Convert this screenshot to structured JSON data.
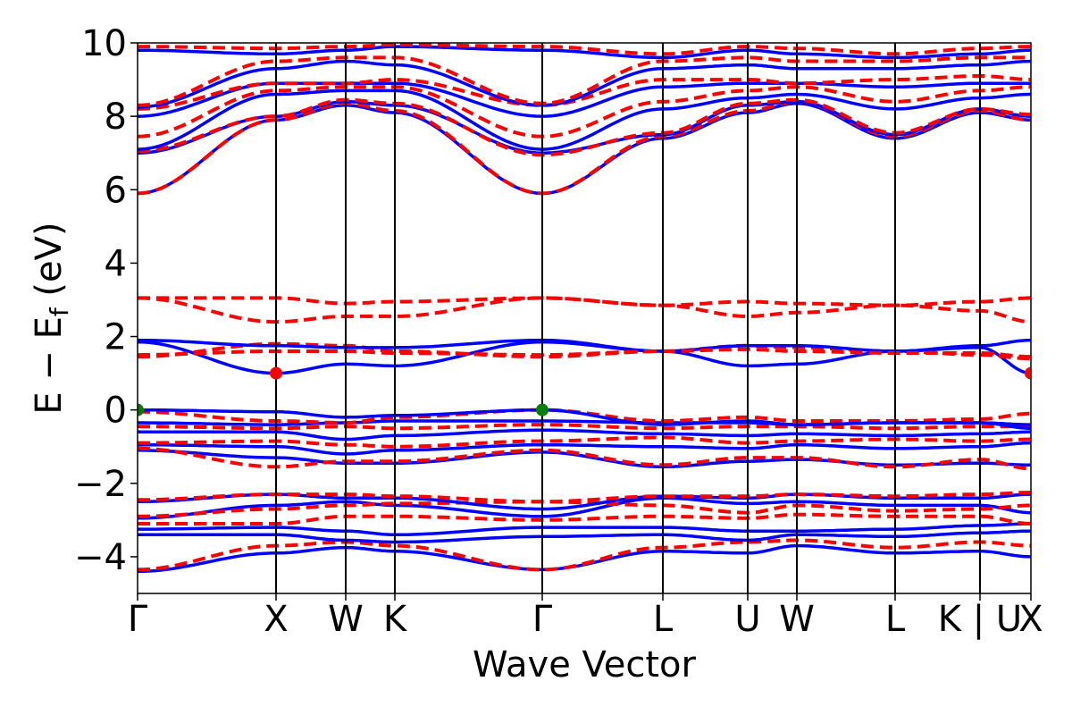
{
  "chart_data": {
    "type": "line",
    "xlabel": "Wave Vector",
    "ylabel": "E − E",
    "ylabel_sub": "f",
    "ylabel_unit": " (eV)",
    "ylim": [
      -5,
      10
    ],
    "xlim": [
      0,
      1
    ],
    "y_ticks": [
      -4,
      -2,
      0,
      2,
      4,
      6,
      8,
      10
    ],
    "y_tick_labels": [
      "−4",
      "−2",
      "0",
      "2",
      "4",
      "6",
      "8",
      "10"
    ],
    "kpoints": [
      {
        "label": "Γ",
        "x": 0.0
      },
      {
        "label": "X",
        "x": 0.155
      },
      {
        "label": "W",
        "x": 0.233
      },
      {
        "label": "K",
        "x": 0.288
      },
      {
        "label": "Γ",
        "x": 0.453
      },
      {
        "label": "L",
        "x": 0.588
      },
      {
        "label": "U",
        "x": 0.683
      },
      {
        "label": "W",
        "x": 0.738
      },
      {
        "label": "L",
        "x": 0.848
      },
      {
        "label": "K | U",
        "x": 0.943
      },
      {
        "label": "X",
        "x": 1.0
      }
    ],
    "colors": {
      "solid": "#0000ff",
      "dashed": "#ff0000",
      "vbm": "#008000",
      "cbm": "#ff0000",
      "kline": "#000000"
    },
    "series": [
      {
        "style": "solid",
        "y": [
          -4.4,
          -3.9,
          -3.75,
          -3.85,
          -4.35,
          -3.85,
          -3.9,
          -3.7,
          -3.9,
          -3.85,
          -4.0
        ]
      },
      {
        "style": "dashed",
        "y": [
          -4.35,
          -3.7,
          -3.6,
          -3.7,
          -4.35,
          -3.75,
          -3.6,
          -3.55,
          -3.75,
          -3.6,
          -3.7
        ]
      },
      {
        "style": "solid",
        "y": [
          -3.4,
          -3.4,
          -3.55,
          -3.6,
          -3.45,
          -3.4,
          -3.55,
          -3.4,
          -3.45,
          -3.35,
          -3.3
        ]
      },
      {
        "style": "solid",
        "y": [
          -3.25,
          -3.2,
          -3.3,
          -3.4,
          -3.2,
          -3.2,
          -3.3,
          -3.3,
          -3.25,
          -3.15,
          -3.1
        ]
      },
      {
        "style": "dashed",
        "y": [
          -3.1,
          -3.1,
          -2.9,
          -2.9,
          -3.0,
          -2.9,
          -2.95,
          -2.85,
          -2.9,
          -2.9,
          -3.1
        ]
      },
      {
        "style": "solid",
        "y": [
          -2.95,
          -2.6,
          -2.5,
          -2.6,
          -2.9,
          -2.4,
          -2.55,
          -2.5,
          -2.6,
          -2.6,
          -2.8
        ]
      },
      {
        "style": "dashed",
        "y": [
          -2.9,
          -2.7,
          -2.6,
          -2.55,
          -2.5,
          -2.6,
          -2.8,
          -2.6,
          -2.75,
          -2.7,
          -2.6
        ]
      },
      {
        "style": "solid",
        "y": [
          -2.5,
          -2.3,
          -2.4,
          -2.4,
          -2.7,
          -2.35,
          -2.4,
          -2.3,
          -2.4,
          -2.4,
          -2.3
        ]
      },
      {
        "style": "dashed",
        "y": [
          -2.45,
          -2.3,
          -2.3,
          -2.35,
          -2.5,
          -2.35,
          -2.35,
          -2.3,
          -2.35,
          -2.3,
          -2.25
        ]
      },
      {
        "style": "solid",
        "y": [
          -1.1,
          -1.3,
          -1.45,
          -1.45,
          -1.15,
          -1.55,
          -1.4,
          -1.35,
          -1.5,
          -1.45,
          -1.5
        ]
      },
      {
        "style": "dashed",
        "y": [
          -1.05,
          -1.55,
          -1.4,
          -1.4,
          -1.1,
          -1.5,
          -1.3,
          -1.3,
          -1.55,
          -1.35,
          -1.6
        ]
      },
      {
        "style": "solid",
        "y": [
          -0.95,
          -1.0,
          -1.2,
          -1.1,
          -0.95,
          -1.0,
          -1.05,
          -0.95,
          -1.05,
          -1.0,
          -0.9
        ]
      },
      {
        "style": "dashed",
        "y": [
          -0.9,
          -0.85,
          -0.95,
          -1.0,
          -0.85,
          -0.75,
          -0.9,
          -0.85,
          -0.8,
          -0.85,
          -0.8
        ]
      },
      {
        "style": "solid",
        "y": [
          -0.6,
          -0.6,
          -0.8,
          -0.7,
          -0.55,
          -0.65,
          -0.7,
          -0.65,
          -0.7,
          -0.65,
          -0.6
        ]
      },
      {
        "style": "dashed",
        "y": [
          -0.45,
          -0.5,
          -0.45,
          -0.5,
          -0.4,
          -0.5,
          -0.45,
          -0.45,
          -0.5,
          -0.45,
          -0.45
        ]
      },
      {
        "style": "solid",
        "y": [
          -0.35,
          -0.4,
          -0.35,
          -0.3,
          -0.3,
          -0.35,
          -0.35,
          -0.4,
          -0.35,
          -0.35,
          -0.4
        ]
      },
      {
        "style": "dashed",
        "y": [
          -0.05,
          -0.3,
          -0.35,
          -0.2,
          0.0,
          -0.3,
          -0.2,
          -0.3,
          -0.3,
          -0.25,
          -0.1
        ]
      },
      {
        "style": "solid",
        "y": [
          0.0,
          -0.05,
          -0.2,
          -0.15,
          0.0,
          -0.4,
          -0.3,
          -0.4,
          -0.35,
          -0.35,
          -0.5
        ]
      },
      {
        "style": "solid",
        "y": [
          1.85,
          1.0,
          1.25,
          1.2,
          1.85,
          1.6,
          1.2,
          1.25,
          1.6,
          1.7,
          1.0
        ]
      },
      {
        "style": "dashed",
        "y": [
          1.45,
          1.8,
          1.75,
          1.6,
          1.45,
          1.6,
          1.75,
          1.7,
          1.6,
          1.5,
          1.4
        ]
      },
      {
        "style": "solid",
        "y": [
          1.9,
          1.75,
          1.7,
          1.7,
          1.9,
          1.6,
          1.75,
          1.75,
          1.6,
          1.75,
          1.9
        ]
      },
      {
        "style": "dashed",
        "y": [
          1.5,
          1.6,
          1.6,
          1.55,
          1.5,
          1.6,
          1.65,
          1.6,
          1.55,
          1.55,
          1.45
        ]
      },
      {
        "style": "dashed",
        "y": [
          3.05,
          2.4,
          2.55,
          2.55,
          3.05,
          2.85,
          2.55,
          2.65,
          2.85,
          2.7,
          2.4
        ]
      },
      {
        "style": "dashed",
        "y": [
          3.05,
          3.05,
          2.9,
          2.95,
          3.05,
          2.85,
          2.95,
          2.9,
          2.85,
          2.95,
          3.05
        ]
      },
      {
        "style": "solid",
        "y": [
          5.9,
          7.9,
          8.3,
          8.1,
          5.9,
          7.4,
          8.1,
          8.35,
          7.4,
          8.1,
          7.9
        ]
      },
      {
        "style": "dashed",
        "y": [
          5.9,
          7.9,
          8.35,
          8.15,
          5.9,
          7.45,
          8.15,
          8.4,
          7.45,
          8.15,
          7.9
        ]
      },
      {
        "style": "solid",
        "y": [
          7.0,
          8.0,
          8.4,
          8.3,
          7.0,
          7.5,
          8.3,
          8.4,
          7.5,
          8.2,
          8.0
        ]
      },
      {
        "style": "dashed",
        "y": [
          7.05,
          8.0,
          8.45,
          8.35,
          6.95,
          7.55,
          8.35,
          8.45,
          7.55,
          8.2,
          8.05
        ]
      },
      {
        "style": "solid",
        "y": [
          7.1,
          8.6,
          8.7,
          8.7,
          7.1,
          8.2,
          8.5,
          8.6,
          8.2,
          8.5,
          8.6
        ]
      },
      {
        "style": "dashed",
        "y": [
          7.45,
          8.7,
          8.8,
          8.8,
          7.45,
          8.4,
          8.7,
          8.8,
          8.4,
          8.7,
          8.8
        ]
      },
      {
        "style": "solid",
        "y": [
          8.0,
          8.9,
          8.9,
          8.9,
          8.0,
          8.8,
          8.9,
          8.9,
          8.8,
          8.9,
          8.9
        ]
      },
      {
        "style": "dashed",
        "y": [
          8.2,
          8.9,
          8.9,
          9.0,
          8.3,
          9.0,
          9.0,
          8.9,
          9.0,
          9.1,
          9.0
        ]
      },
      {
        "style": "solid",
        "y": [
          8.25,
          9.3,
          9.5,
          9.4,
          8.3,
          9.3,
          9.4,
          9.3,
          9.3,
          9.4,
          9.5
        ]
      },
      {
        "style": "dashed",
        "y": [
          8.3,
          9.5,
          9.6,
          9.6,
          8.35,
          9.5,
          9.6,
          9.5,
          9.5,
          9.6,
          9.6
        ]
      },
      {
        "style": "solid",
        "y": [
          9.8,
          9.7,
          9.8,
          9.9,
          9.8,
          9.6,
          9.8,
          9.7,
          9.6,
          9.7,
          9.8
        ]
      },
      {
        "style": "dashed",
        "y": [
          9.9,
          9.85,
          9.9,
          9.95,
          9.9,
          9.7,
          9.9,
          9.85,
          9.7,
          9.85,
          9.9
        ]
      }
    ],
    "vbm_points": [
      {
        "x": 0.0,
        "y": 0.0
      },
      {
        "x": 0.453,
        "y": 0.0
      }
    ],
    "cbm_points": [
      {
        "x": 0.155,
        "y": 1.0
      },
      {
        "x": 1.0,
        "y": 1.0
      }
    ]
  }
}
